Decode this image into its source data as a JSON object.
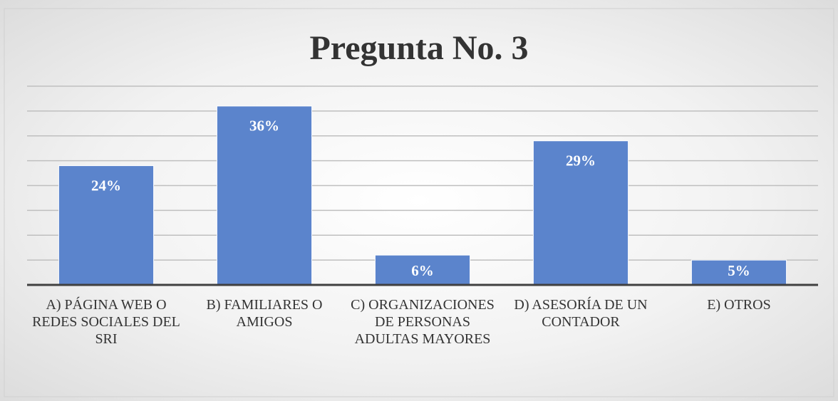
{
  "chart_data": {
    "type": "bar",
    "title": "Pregunta No. 3",
    "categories": [
      "A) PÁGINA WEB O REDES SOCIALES DEL SRI",
      "B) FAMILIARES O AMIGOS",
      "C) ORGANIZACIONES DE PERSONAS ADULTAS MAYORES",
      "D) ASESORÍA DE UN CONTADOR",
      "E) OTROS"
    ],
    "values": [
      24,
      36,
      6,
      29,
      5
    ],
    "value_labels": [
      "24%",
      "36%",
      "6%",
      "29%",
      "5%"
    ],
    "color": "#5b84cc",
    "ylim": [
      0,
      40
    ],
    "yticks": [
      0,
      5,
      10,
      15,
      20,
      25,
      30,
      35,
      40
    ],
    "grid": true
  }
}
